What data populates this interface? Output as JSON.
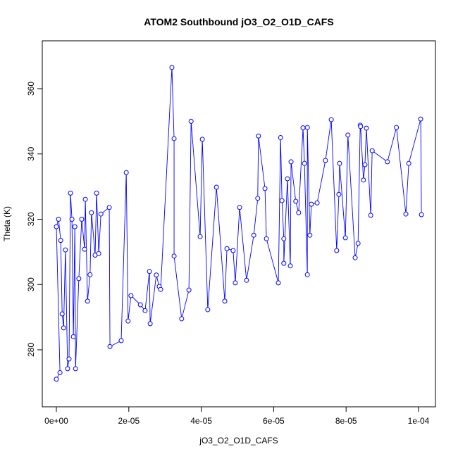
{
  "chart_data": {
    "type": "line",
    "title": "ATOM2 Southbound jO3_O2_O1D_CAFS",
    "x_label": "jO3_O2_O1D_CAFS",
    "y_label": "Theta (K)",
    "color": "#0000ff",
    "markers": "open-circle",
    "x": [
      0,
      1e-06,
      0,
      6e-07,
      1.2e-06,
      1.6e-06,
      2e-06,
      2.5e-06,
      3.1e-06,
      3.5e-06,
      3.9e-06,
      4.3e-06,
      4.7e-06,
      5.1e-06,
      5.3e-06,
      6.2e-06,
      7e-06,
      7.8e-06,
      8e-06,
      8.6e-06,
      9.3e-06,
      9.7e-06,
      1.07e-05,
      1.11e-05,
      1.17e-05,
      1.23e-05,
      1.46e-05,
      1.48e-05,
      1.79e-05,
      1.93e-05,
      1.98e-05,
      2.06e-05,
      2.32e-05,
      2.45e-05,
      2.57e-05,
      2.59e-05,
      2.76e-05,
      2.84e-05,
      2.88e-05,
      3.19e-05,
      3.25e-05,
      3.25e-05,
      3.46e-05,
      3.66e-05,
      3.72e-05,
      3.97e-05,
      4.03e-05,
      4.18e-05,
      4.42e-05,
      4.65e-05,
      4.71e-05,
      4.88e-05,
      4.94e-05,
      5.06e-05,
      5.25e-05,
      5.45e-05,
      5.56e-05,
      5.58e-05,
      5.76e-05,
      5.8e-05,
      6.13e-05,
      6.19e-05,
      6.23e-05,
      6.28e-05,
      6.28e-05,
      6.38e-05,
      6.46e-05,
      6.48e-05,
      6.61e-05,
      6.69e-05,
      6.81e-05,
      6.85e-05,
      6.93e-05,
      6.93e-05,
      7e-05,
      7.04e-05,
      7.2e-05,
      7.43e-05,
      7.59e-05,
      7.74e-05,
      7.8e-05,
      7.82e-05,
      7.98e-05,
      8.05e-05,
      8.25e-05,
      8.33e-05,
      8.39e-05,
      8.4e-05,
      8.48e-05,
      8.52e-05,
      8.56e-05,
      8.68e-05,
      8.72e-05,
      9.14e-05,
      9.39e-05,
      9.65e-05,
      9.73e-05,
      0.0001006,
      0.0001008
    ],
    "values": [
      271,
      273,
      317.7,
      320,
      313.5,
      291,
      286.7,
      310.6,
      274.2,
      277.2,
      328,
      320,
      284,
      317.7,
      274.2,
      301.8,
      320,
      310.8,
      326.1,
      294.9,
      303,
      322,
      309,
      328,
      309.5,
      321.6,
      323.6,
      281,
      282.8,
      334.3,
      288.8,
      296.6,
      293.8,
      292,
      304,
      288,
      302.9,
      299.4,
      298.5,
      366.5,
      344.7,
      308.7,
      289.5,
      298.3,
      350,
      314.7,
      344.5,
      292.3,
      329.8,
      294.9,
      311,
      310.4,
      300.5,
      323.6,
      301.3,
      315.1,
      326.4,
      345.5,
      329.4,
      314,
      300.5,
      345,
      325.7,
      314,
      306.5,
      332.4,
      305.7,
      337.6,
      325.5,
      322,
      348,
      337.1,
      303,
      348.1,
      315.1,
      324.6,
      325,
      338,
      350.5,
      310.4,
      327.6,
      337.1,
      314.3,
      345.8,
      308.2,
      312.6,
      348.8,
      348.4,
      332,
      336.7,
      347.9,
      321.2,
      341,
      337.6,
      348.1,
      321.6,
      337.1,
      350.7,
      321.4
    ],
    "xlim": [
      -3.89e-06,
      0.00010467
    ],
    "ylim": [
      262.53,
      374.66
    ],
    "xticks": [
      {
        "value": 0,
        "label": "0e+00"
      },
      {
        "value": 2e-05,
        "label": "2e-05"
      },
      {
        "value": 4e-05,
        "label": "4e-05"
      },
      {
        "value": 6e-05,
        "label": "6e-05"
      },
      {
        "value": 8e-05,
        "label": "8e-05"
      },
      {
        "value": 0.0001,
        "label": "1e-04"
      }
    ],
    "yticks": [
      280,
      300,
      320,
      340,
      360
    ]
  }
}
